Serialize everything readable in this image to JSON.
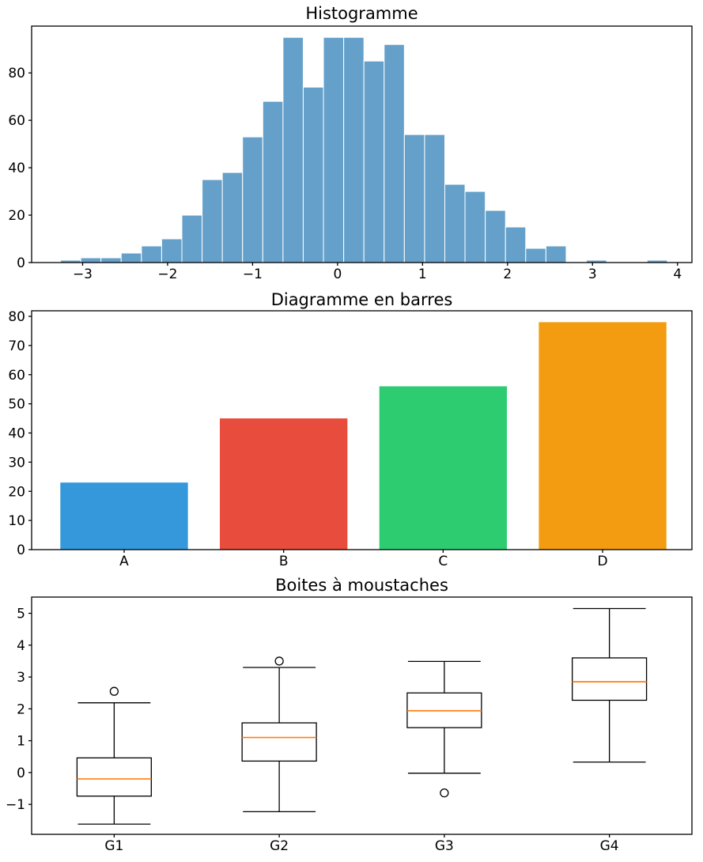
{
  "figure": {
    "background": "#ffffff",
    "axis_color": "#000000",
    "text_color": "#000000"
  },
  "chart_data": [
    {
      "type": "histogram",
      "title": "Histogramme",
      "bar_color": "#64a0ca",
      "bar_edge_color": "#ffffff",
      "bin_start": -3.26,
      "bin_width": 0.238,
      "counts": [
        1,
        2,
        2,
        4,
        7,
        10,
        20,
        35,
        38,
        53,
        68,
        95,
        74,
        95,
        95,
        85,
        92,
        54,
        54,
        33,
        30,
        22,
        15,
        6,
        7,
        0,
        1,
        0,
        0,
        1
      ],
      "xlim": [
        -3.6,
        4.17
      ],
      "ylim": [
        0,
        99.75
      ],
      "x_ticks": {
        "values": [
          -3,
          -2,
          -1,
          0,
          1,
          2,
          3,
          4
        ],
        "labels": [
          "−3",
          "−2",
          "−1",
          "0",
          "1",
          "2",
          "3",
          "4"
        ]
      },
      "y_ticks": {
        "values": [
          0,
          20,
          40,
          60,
          80
        ],
        "labels": [
          "0",
          "20",
          "40",
          "60",
          "80"
        ]
      },
      "grid": false,
      "legend": false
    },
    {
      "type": "bar",
      "title": "Diagramme en barres",
      "categories": [
        "A",
        "B",
        "C",
        "D"
      ],
      "values": [
        23,
        45,
        56,
        78
      ],
      "colors": [
        "#3498db",
        "#e74c3c",
        "#2ecc71",
        "#f39c12"
      ],
      "bar_width": 0.8,
      "xlim": [
        -0.58,
        3.56
      ],
      "ylim": [
        0,
        81.9
      ],
      "y_ticks": {
        "values": [
          0,
          10,
          20,
          30,
          40,
          50,
          60,
          70,
          80
        ],
        "labels": [
          "0",
          "10",
          "20",
          "30",
          "40",
          "50",
          "60",
          "70",
          "80"
        ]
      },
      "grid": false,
      "legend": false
    },
    {
      "type": "box",
      "title": "Boites à moustaches",
      "categories": [
        "G1",
        "G2",
        "G3",
        "G4"
      ],
      "positions": [
        1,
        2,
        3,
        4
      ],
      "box_width": 0.45,
      "cap_width": 0.22,
      "box_color": "#000000",
      "median_color": "#ff7f0e",
      "outlier_radius": 5,
      "xlim": [
        0.5,
        4.5
      ],
      "ylim": [
        -1.94,
        5.51
      ],
      "y_ticks": {
        "values": [
          -1,
          0,
          1,
          2,
          3,
          4,
          5
        ],
        "labels": [
          "−1",
          "0",
          "1",
          "2",
          "3",
          "4",
          "5"
        ]
      },
      "series": [
        {
          "name": "G1",
          "whisker_low": -1.62,
          "q1": -0.74,
          "median": -0.2,
          "q3": 0.46,
          "whisker_high": 2.19,
          "outliers": [
            2.55
          ]
        },
        {
          "name": "G2",
          "whisker_low": -1.23,
          "q1": 0.36,
          "median": 1.1,
          "q3": 1.56,
          "whisker_high": 3.3,
          "outliers": [
            3.5
          ]
        },
        {
          "name": "G3",
          "whisker_low": -0.02,
          "q1": 1.41,
          "median": 1.94,
          "q3": 2.5,
          "whisker_high": 3.49,
          "outliers": [
            -0.64
          ]
        },
        {
          "name": "G4",
          "whisker_low": 0.33,
          "q1": 2.27,
          "median": 2.85,
          "q3": 3.6,
          "whisker_high": 5.15,
          "outliers": []
        }
      ],
      "grid": false,
      "legend": false
    }
  ]
}
